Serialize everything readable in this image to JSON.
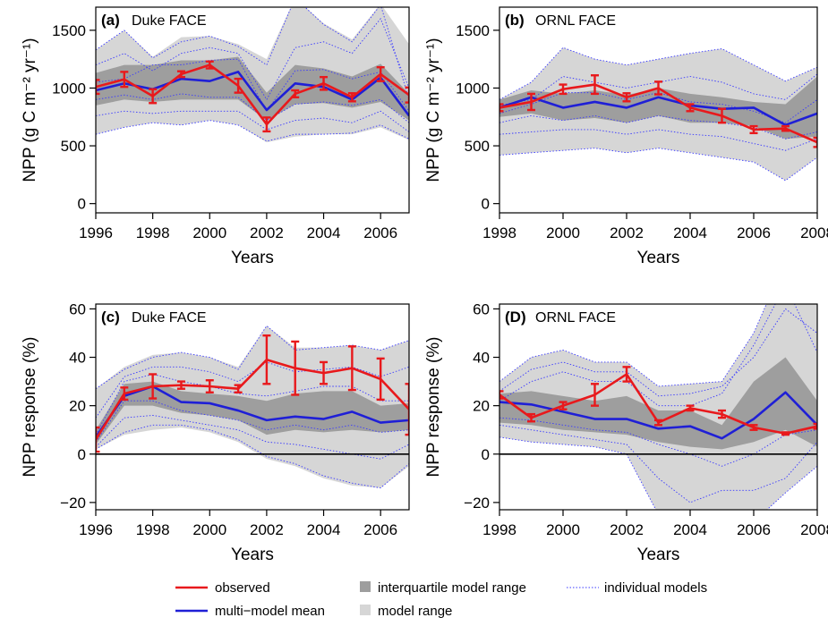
{
  "colors": {
    "observed": "#e8191c",
    "mean": "#1f1fd6",
    "individual": "#3a3aff",
    "iqr": "#9e9e9e",
    "range": "#d6d6d6"
  },
  "legend": {
    "items": [
      {
        "label": "observed",
        "style": "observed"
      },
      {
        "label": "multi−model mean",
        "style": "mean"
      },
      {
        "label": "interquartile model range",
        "style": "iqr"
      },
      {
        "label": "model range",
        "style": "range"
      },
      {
        "label": "individual models",
        "style": "individual"
      }
    ]
  },
  "chart_data": [
    {
      "id": "a",
      "type": "line",
      "tag": "(a)",
      "title": "Duke FACE",
      "xlabel": "Years",
      "ylabel": "NPP (g C m⁻² yr⁻¹)",
      "xlim": [
        1996,
        2007
      ],
      "ylim": [
        -80,
        1700
      ],
      "xticks": [
        1996,
        1998,
        2000,
        2002,
        2004,
        2006
      ],
      "yticks": [
        0,
        500,
        1000,
        1500
      ],
      "zero_line": false,
      "x": [
        1996,
        1997,
        1998,
        1999,
        2000,
        2001,
        2002,
        2003,
        2004,
        2005,
        2006,
        2007
      ],
      "observed": [
        1010,
        1075,
        930,
        1120,
        1200,
        1020,
        685,
        950,
        1040,
        920,
        1120,
        940
      ],
      "observed_err": [
        60,
        65,
        60,
        25,
        30,
        60,
        60,
        30,
        55,
        35,
        60,
        65
      ],
      "mean": [
        980,
        1040,
        990,
        1080,
        1060,
        1140,
        810,
        1040,
        1010,
        900,
        1090,
        760
      ],
      "iqr_low": [
        850,
        900,
        880,
        900,
        900,
        900,
        720,
        860,
        870,
        830,
        880,
        720
      ],
      "iqr_high": [
        1130,
        1200,
        1200,
        1240,
        1240,
        1270,
        960,
        1200,
        1170,
        1100,
        1210,
        950
      ],
      "range_low": [
        600,
        660,
        700,
        680,
        720,
        680,
        530,
        580,
        600,
        600,
        660,
        550
      ],
      "range_high": [
        1330,
        1500,
        1270,
        1440,
        1450,
        1380,
        1250,
        1780,
        1560,
        1420,
        1730,
        1380
      ],
      "models": [
        [
          1330,
          1500,
          1260,
          1400,
          1450,
          1360,
          1200,
          1780,
          1550,
          1400,
          1720,
          900
        ],
        [
          600,
          660,
          700,
          680,
          720,
          680,
          540,
          600,
          600,
          610,
          680,
          560
        ],
        [
          1050,
          1080,
          1200,
          1200,
          1240,
          1250,
          800,
          1150,
          1160,
          1080,
          1140,
          800
        ],
        [
          900,
          940,
          900,
          950,
          920,
          920,
          720,
          860,
          880,
          850,
          900,
          700
        ],
        [
          1200,
          1300,
          1150,
          1300,
          1350,
          1300,
          900,
          1350,
          1400,
          1300,
          1600,
          1000
        ],
        [
          760,
          800,
          780,
          800,
          800,
          800,
          640,
          720,
          740,
          700,
          800,
          620
        ]
      ]
    },
    {
      "id": "b",
      "type": "line",
      "tag": "(b)",
      "title": "ORNL FACE",
      "xlabel": "Years",
      "ylabel": "NPP (g C m⁻² yr⁻¹)",
      "xlim": [
        1998,
        2008
      ],
      "ylim": [
        -80,
        1700
      ],
      "xticks": [
        1998,
        2000,
        2002,
        2004,
        2006,
        2008
      ],
      "yticks": [
        0,
        500,
        1000,
        1500
      ],
      "zero_line": false,
      "x": [
        1998,
        1999,
        2000,
        2001,
        2002,
        2003,
        2004,
        2005,
        2006,
        2007,
        2008
      ],
      "observed": [
        830,
        880,
        990,
        1030,
        920,
        1000,
        830,
        760,
        640,
        650,
        530
      ],
      "observed_err": [
        30,
        70,
        40,
        80,
        35,
        55,
        30,
        60,
        30,
        20,
        40
      ],
      "mean": [
        830,
        920,
        830,
        880,
        830,
        920,
        850,
        820,
        830,
        680,
        780
      ],
      "iqr_low": [
        750,
        780,
        720,
        740,
        700,
        760,
        700,
        700,
        670,
        560,
        580
      ],
      "iqr_high": [
        900,
        980,
        950,
        980,
        940,
        1000,
        950,
        920,
        880,
        860,
        1100
      ],
      "range_low": [
        420,
        440,
        460,
        480,
        440,
        480,
        440,
        400,
        360,
        200,
        400
      ],
      "range_high": [
        900,
        1050,
        1350,
        1250,
        1200,
        1250,
        1300,
        1340,
        1200,
        1060,
        1180
      ],
      "models": [
        [
          900,
          1050,
          1350,
          1250,
          1200,
          1250,
          1300,
          1340,
          1200,
          1060,
          1180
        ],
        [
          420,
          440,
          460,
          480,
          440,
          480,
          440,
          400,
          360,
          200,
          400
        ],
        [
          780,
          860,
          960,
          960,
          900,
          960,
          880,
          860,
          800,
          700,
          900
        ],
        [
          700,
          760,
          720,
          760,
          700,
          760,
          720,
          700,
          660,
          560,
          620
        ],
        [
          850,
          900,
          1100,
          1050,
          1000,
          1050,
          1100,
          1050,
          950,
          900,
          1120
        ],
        [
          600,
          620,
          640,
          640,
          600,
          640,
          600,
          580,
          520,
          460,
          560
        ]
      ]
    },
    {
      "id": "c",
      "type": "line",
      "tag": "(c)",
      "title": "Duke FACE",
      "xlabel": "Years",
      "ylabel": "NPP response (%)",
      "xlim": [
        1996,
        2007
      ],
      "ylim": [
        -23,
        62
      ],
      "xticks": [
        1996,
        1998,
        2000,
        2002,
        2004,
        2006
      ],
      "yticks": [
        -20,
        0,
        20,
        40,
        60
      ],
      "zero_line": true,
      "x": [
        1996,
        1997,
        1998,
        1999,
        2000,
        2001,
        2002,
        2003,
        2004,
        2005,
        2006,
        2007
      ],
      "observed": [
        6,
        25,
        28,
        28.5,
        28,
        27,
        39,
        35.5,
        33.5,
        35.5,
        31,
        18.5
      ],
      "observed_err": [
        5,
        2.5,
        5,
        1.5,
        2.5,
        1.5,
        10,
        11,
        4.5,
        9,
        8.5,
        10.5
      ],
      "mean": [
        7,
        24,
        28,
        21.5,
        21,
        18,
        14,
        15.5,
        14.5,
        17.5,
        13,
        14
      ],
      "iqr_low": [
        4,
        20,
        20,
        17,
        16,
        14,
        8,
        10,
        9,
        10,
        9,
        10
      ],
      "iqr_high": [
        10,
        29,
        30,
        26,
        25,
        24,
        22,
        25,
        26,
        26,
        20,
        21
      ],
      "range_low": [
        2,
        8,
        10,
        11,
        9,
        5,
        -2,
        -5,
        -10,
        -13,
        -14,
        -5
      ],
      "range_high": [
        27,
        36,
        41,
        42,
        40,
        36,
        53,
        44,
        44,
        45,
        43,
        47
      ],
      "models": [
        [
          27,
          35,
          40,
          42,
          40,
          35,
          53,
          43,
          44,
          45,
          43,
          47
        ],
        [
          2,
          9,
          12,
          12,
          10,
          6,
          -1,
          -4,
          -9,
          -12,
          -14,
          -4
        ],
        [
          8,
          30,
          33,
          30,
          28,
          25,
          24,
          26,
          28,
          28,
          22,
          22
        ],
        [
          5,
          22,
          22,
          18,
          16,
          14,
          10,
          12,
          10,
          12,
          9,
          10
        ],
        [
          15,
          32,
          36,
          36,
          34,
          30,
          38,
          34,
          35,
          36,
          32,
          36
        ],
        [
          3,
          15,
          16,
          14,
          12,
          10,
          5,
          4,
          2,
          0,
          -2,
          4
        ]
      ]
    },
    {
      "id": "d",
      "type": "line",
      "tag": "(D)",
      "title": "ORNL FACE",
      "xlabel": "Years",
      "ylabel": "NPP response (%)",
      "xlim": [
        1998,
        2008
      ],
      "ylim": [
        -23,
        62
      ],
      "xticks": [
        1998,
        2000,
        2002,
        2004,
        2006,
        2008
      ],
      "yticks": [
        -20,
        0,
        20,
        40,
        60
      ],
      "zero_line": true,
      "x": [
        1998,
        1999,
        2000,
        2001,
        2002,
        2003,
        2004,
        2005,
        2006,
        2007,
        2008
      ],
      "observed": [
        24.5,
        15,
        20,
        24.5,
        33,
        13,
        19,
        16.5,
        11,
        8.5,
        11.5
      ],
      "observed_err": [
        1.5,
        1.5,
        1.5,
        4.5,
        3,
        1,
        1,
        1.5,
        1,
        0.5,
        1
      ],
      "mean": [
        21.5,
        20.5,
        17.5,
        14.5,
        14.5,
        10.5,
        11.5,
        6.5,
        14.5,
        25.5,
        12
      ],
      "iqr_low": [
        13,
        12,
        10,
        9,
        8,
        5,
        3,
        2,
        5,
        10,
        3
      ],
      "iqr_high": [
        25,
        26,
        24,
        22,
        24,
        18,
        18,
        12,
        30,
        40,
        22
      ],
      "range_low": [
        7,
        5,
        4,
        3,
        0,
        -25,
        -25,
        -25,
        -28,
        -16,
        -5
      ],
      "range_high": [
        30,
        40,
        43,
        38,
        38,
        28,
        29,
        30,
        50,
        80,
        62
      ],
      "models": [
        [
          30,
          40,
          43,
          38,
          38,
          28,
          29,
          30,
          50,
          80,
          62
        ],
        [
          7,
          5,
          4,
          3,
          0,
          -25,
          -25,
          -25,
          -28,
          -16,
          -5
        ],
        [
          22,
          30,
          34,
          30,
          30,
          20,
          20,
          25,
          45,
          70,
          42
        ],
        [
          12,
          10,
          8,
          6,
          4,
          -10,
          -20,
          -15,
          -15,
          -10,
          5
        ],
        [
          26,
          35,
          38,
          34,
          34,
          24,
          25,
          28,
          40,
          60,
          50
        ],
        [
          15,
          14,
          12,
          10,
          9,
          4,
          0,
          -5,
          0,
          8,
          10
        ]
      ]
    }
  ]
}
